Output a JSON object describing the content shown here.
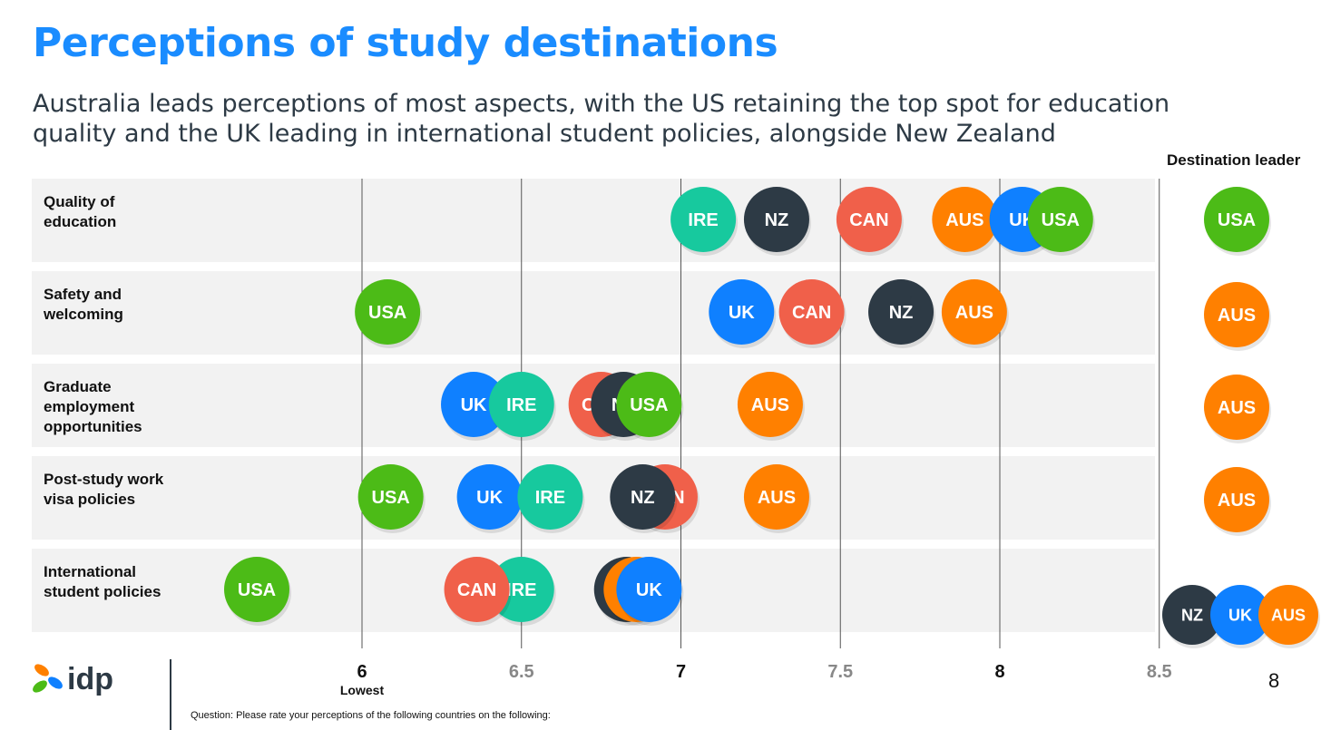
{
  "title": "Perceptions of study destinations",
  "subtitle": "Australia leads perceptions of most aspects, with the US retaining the top spot for education quality and the UK leading in international student policies, alongside New Zealand",
  "destination_leader_header": "Destination leader",
  "lowest_label": "Lowest",
  "footer": {
    "question": "Question: Please rate your perceptions of the following countries on the following:",
    "page_number": "8",
    "logo_text": "idp"
  },
  "colors": {
    "USA": "#4cbb17",
    "AUS": "#ff8000",
    "UK": "#0f80ff",
    "NZ": "#2d3a45",
    "CAN": "#f0604a",
    "IRE": "#17c99e",
    "row_bg": "#f2f2f2",
    "title": "#1a8cff"
  },
  "chart_data": {
    "type": "scatter",
    "title": "Perceptions of study destinations",
    "x_axis": {
      "range": [
        5.3,
        8.75
      ],
      "ticks": [
        {
          "value": 6,
          "label": "6"
        },
        {
          "value": 6.5,
          "label": "6.5"
        },
        {
          "value": 7,
          "label": "7"
        },
        {
          "value": 7.5,
          "label": "7.5"
        },
        {
          "value": 8,
          "label": "8"
        },
        {
          "value": 8.5,
          "label": "8.5"
        }
      ]
    },
    "grid": true,
    "categories": [
      {
        "label": "Quality of education",
        "lines": [
          "Quality of",
          "education"
        ],
        "points": [
          {
            "country": "IRE",
            "value": 7.07
          },
          {
            "country": "NZ",
            "value": 7.3
          },
          {
            "country": "CAN",
            "value": 7.59
          },
          {
            "country": "AUS",
            "value": 7.89
          },
          {
            "country": "UK",
            "value": 8.07
          },
          {
            "country": "USA",
            "value": 8.19
          }
        ],
        "leader": [
          "USA"
        ]
      },
      {
        "label": "Safety and welcoming",
        "lines": [
          "Safety and",
          "welcoming"
        ],
        "points": [
          {
            "country": "USA",
            "value": 6.08
          },
          {
            "country": "UK",
            "value": 7.19
          },
          {
            "country": "CAN",
            "value": 7.41
          },
          {
            "country": "NZ",
            "value": 7.69
          },
          {
            "country": "AUS",
            "value": 7.92
          }
        ],
        "leader": [
          "AUS"
        ]
      },
      {
        "label": "Graduate employment opportunities",
        "lines": [
          "Graduate",
          "employment",
          "opportunities"
        ],
        "points": [
          {
            "country": "UK",
            "value": 6.35
          },
          {
            "country": "IRE",
            "value": 6.5
          },
          {
            "country": "CAN",
            "value": 6.75
          },
          {
            "country": "NZ",
            "value": 6.82
          },
          {
            "country": "USA",
            "value": 6.9
          },
          {
            "country": "AUS",
            "value": 7.28
          }
        ],
        "leader": [
          "AUS"
        ]
      },
      {
        "label": "Post-study work visa policies",
        "lines": [
          "Post-study work",
          "visa policies"
        ],
        "points": [
          {
            "country": "USA",
            "value": 6.09
          },
          {
            "country": "UK",
            "value": 6.4
          },
          {
            "country": "IRE",
            "value": 6.59
          },
          {
            "country": "CAN",
            "value": 6.95
          },
          {
            "country": "NZ",
            "value": 6.88
          },
          {
            "country": "AUS",
            "value": 7.3
          }
        ],
        "leader": [
          "AUS"
        ]
      },
      {
        "label": "International student policies",
        "lines": [
          "International",
          "student policies"
        ],
        "points": [
          {
            "country": "USA",
            "value": 5.67
          },
          {
            "country": "IRE",
            "value": 6.5
          },
          {
            "country": "CAN",
            "value": 6.36
          },
          {
            "country": "NZ",
            "value": 6.83
          },
          {
            "country": "AUS",
            "value": 6.86
          },
          {
            "country": "UK",
            "value": 6.9
          }
        ],
        "leader": [
          "NZ",
          "UK",
          "AUS"
        ]
      }
    ]
  }
}
